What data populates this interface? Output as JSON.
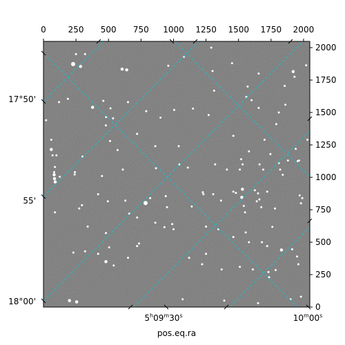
{
  "chart_data": {
    "type": "image",
    "xlabel": "pos.eq.ra",
    "pixel_x_axis": {
      "range": [
        0,
        2048
      ],
      "ticks": [
        0,
        250,
        500,
        750,
        1000,
        1250,
        1500,
        1750,
        2000
      ],
      "tick_labels": [
        "0",
        "250",
        "500",
        "750",
        "1000",
        "1250",
        "1500",
        "1750",
        "2000"
      ]
    },
    "pixel_y_axis": {
      "range": [
        0,
        2048
      ],
      "ticks": [
        0,
        250,
        500,
        750,
        1000,
        1250,
        1500,
        1750,
        2000
      ],
      "tick_labels": [
        "0",
        "250",
        "500",
        "750",
        "1000",
        "1250",
        "1500",
        "1750",
        "2000"
      ]
    },
    "dec_axis": {
      "tick_labels": [
        "17°50'",
        "55'",
        "18°00'"
      ]
    },
    "ra_axis": {
      "tick_labels": [
        "5h09m30s",
        "10m00s"
      ]
    },
    "grid_color": "#17becf",
    "stars": [
      [
        228,
        1873,
        4
      ],
      [
        285,
        1855,
        3
      ],
      [
        605,
        1834,
        3
      ],
      [
        640,
        1829,
        3
      ],
      [
        1655,
        1800,
        2
      ],
      [
        1920,
        1815,
        3
      ],
      [
        2020,
        1864,
        2
      ],
      [
        188,
        1605,
        2
      ],
      [
        378,
        1540,
        3
      ],
      [
        482,
        1465,
        2
      ],
      [
        515,
        1532,
        2
      ],
      [
        535,
        1455,
        2
      ],
      [
        1312,
        1668,
        2
      ],
      [
        1600,
        1595,
        2
      ],
      [
        1005,
        1520,
        2
      ],
      [
        20,
        1440,
        2
      ],
      [
        1655,
        1535,
        2
      ],
      [
        1855,
        1705,
        2
      ],
      [
        1860,
        1560,
        2
      ],
      [
        1930,
        1775,
        2
      ],
      [
        512,
        1280,
        2
      ],
      [
        60,
        1215,
        3
      ],
      [
        70,
        1170,
        2
      ],
      [
        570,
        1210,
        2
      ],
      [
        1580,
        1200,
        2
      ],
      [
        1745,
        1180,
        2
      ],
      [
        1880,
        1130,
        2
      ],
      [
        1955,
        1125,
        2
      ],
      [
        1045,
        1100,
        2
      ],
      [
        1110,
        1075,
        2
      ],
      [
        865,
        1070,
        2
      ],
      [
        610,
        1060,
        2
      ],
      [
        1410,
        1060,
        2
      ],
      [
        1510,
        1060,
        2
      ],
      [
        82,
        1020,
        3
      ],
      [
        240,
        1022,
        2
      ],
      [
        450,
        1010,
        2
      ],
      [
        1810,
        1110,
        2
      ],
      [
        1965,
        1130,
        2
      ],
      [
        85,
        990,
        3
      ],
      [
        90,
        965,
        3
      ],
      [
        242,
        1040,
        2
      ],
      [
        88,
        1080,
        2
      ],
      [
        125,
        1005,
        2
      ],
      [
        1532,
        1100,
        2
      ],
      [
        1662,
        1100,
        2
      ],
      [
        82,
        1040,
        2
      ],
      [
        1840,
        1020,
        2
      ],
      [
        1820,
        1060,
        2
      ],
      [
        1520,
        1140,
        2
      ],
      [
        1690,
        1060,
        2
      ],
      [
        1320,
        1100,
        2
      ],
      [
        420,
        870,
        2
      ],
      [
        785,
        802,
        4
      ],
      [
        630,
        820,
        2
      ],
      [
        495,
        815,
        2
      ],
      [
        1525,
        846,
        3
      ],
      [
        1540,
        780,
        2
      ],
      [
        1460,
        890,
        2
      ],
      [
        1530,
        908,
        3
      ],
      [
        1625,
        900,
        2
      ],
      [
        1650,
        876,
        2
      ],
      [
        1225,
        885,
        2
      ],
      [
        1230,
        870,
        2
      ],
      [
        1305,
        870,
        2
      ],
      [
        1480,
        880,
        2
      ],
      [
        275,
        760,
        2
      ],
      [
        296,
        785,
        2
      ],
      [
        1365,
        820,
        2
      ],
      [
        1720,
        890,
        2
      ],
      [
        1990,
        840,
        2
      ],
      [
        1970,
        860,
        2
      ],
      [
        1980,
        800,
        2
      ],
      [
        88,
        730,
        2
      ],
      [
        660,
        720,
        2
      ],
      [
        720,
        690,
        2
      ],
      [
        860,
        650,
        2
      ],
      [
        930,
        616,
        2
      ],
      [
        990,
        640,
        2
      ],
      [
        1000,
        600,
        2
      ],
      [
        1345,
        600,
        2
      ],
      [
        1460,
        540,
        2
      ],
      [
        1555,
        575,
        2
      ],
      [
        1760,
        618,
        2
      ],
      [
        1580,
        500,
        2
      ],
      [
        1680,
        500,
        2
      ],
      [
        1720,
        470,
        2
      ],
      [
        1830,
        440,
        3
      ],
      [
        1912,
        445,
        2
      ],
      [
        1950,
        390,
        2
      ],
      [
        1960,
        330,
        2
      ],
      [
        1785,
        285,
        2
      ],
      [
        1735,
        230,
        2
      ],
      [
        230,
        420,
        2
      ],
      [
        320,
        430,
        2
      ],
      [
        420,
        410,
        2
      ],
      [
        505,
        460,
        2
      ],
      [
        480,
        350,
        3
      ],
      [
        540,
        320,
        2
      ],
      [
        650,
        380,
        2
      ],
      [
        1120,
        380,
        2
      ],
      [
        1220,
        330,
        2
      ],
      [
        1370,
        290,
        2
      ],
      [
        1510,
        310,
        2
      ],
      [
        1610,
        290,
        2
      ],
      [
        1730,
        270,
        2
      ],
      [
        200,
        50,
        3
      ],
      [
        255,
        40,
        3
      ],
      [
        1070,
        60,
        2
      ],
      [
        1650,
        30,
        2
      ],
      [
        1390,
        50,
        2
      ],
      [
        1900,
        60,
        2
      ],
      [
        1980,
        80,
        2
      ],
      [
        1660,
        830,
        2
      ],
      [
        1640,
        815,
        2
      ],
      [
        1675,
        770,
        2
      ],
      [
        1140,
        775,
        2
      ],
      [
        950,
        770,
        2
      ],
      [
        940,
        855,
        2
      ],
      [
        820,
        840,
        2
      ],
      [
        735,
        490,
        2
      ],
      [
        720,
        470,
        2
      ],
      [
        1250,
        410,
        2
      ],
      [
        1150,
        1530,
        2
      ],
      [
        1290,
        2000,
        2
      ],
      [
        1080,
        1930,
        2
      ],
      [
        250,
        1950,
        2
      ],
      [
        120,
        1580,
        2
      ],
      [
        1810,
        1500,
        2
      ],
      [
        300,
        1160,
        2
      ],
      [
        1040,
        1240,
        2
      ],
      [
        480,
        1400,
        2
      ],
      [
        720,
        1335,
        2
      ],
      [
        900,
        1460,
        2
      ],
      [
        1700,
        1290,
        2
      ],
      [
        1460,
        1320,
        2
      ],
      [
        2030,
        1290,
        2
      ],
      [
        1940,
        1220,
        2
      ],
      [
        1790,
        1410,
        2
      ],
      [
        650,
        1580,
        2
      ],
      [
        790,
        1510,
        2
      ],
      [
        320,
        1950,
        2
      ],
      [
        960,
        1860,
        2
      ],
      [
        1300,
        1820,
        2
      ],
      [
        1450,
        1880,
        2
      ],
      [
        60,
        1290,
        2
      ],
      [
        100,
        1170,
        2
      ],
      [
        480,
        570,
        2
      ],
      [
        1550,
        730,
        2
      ],
      [
        1780,
        760,
        2
      ],
      [
        1250,
        620,
        2
      ],
      [
        1270,
        1480,
        2
      ],
      [
        460,
        1590,
        2
      ],
      [
        860,
        1240,
        2
      ],
      [
        340,
        620,
        2
      ],
      [
        1560,
        1620,
        2
      ],
      [
        1570,
        1700,
        2
      ]
    ]
  }
}
